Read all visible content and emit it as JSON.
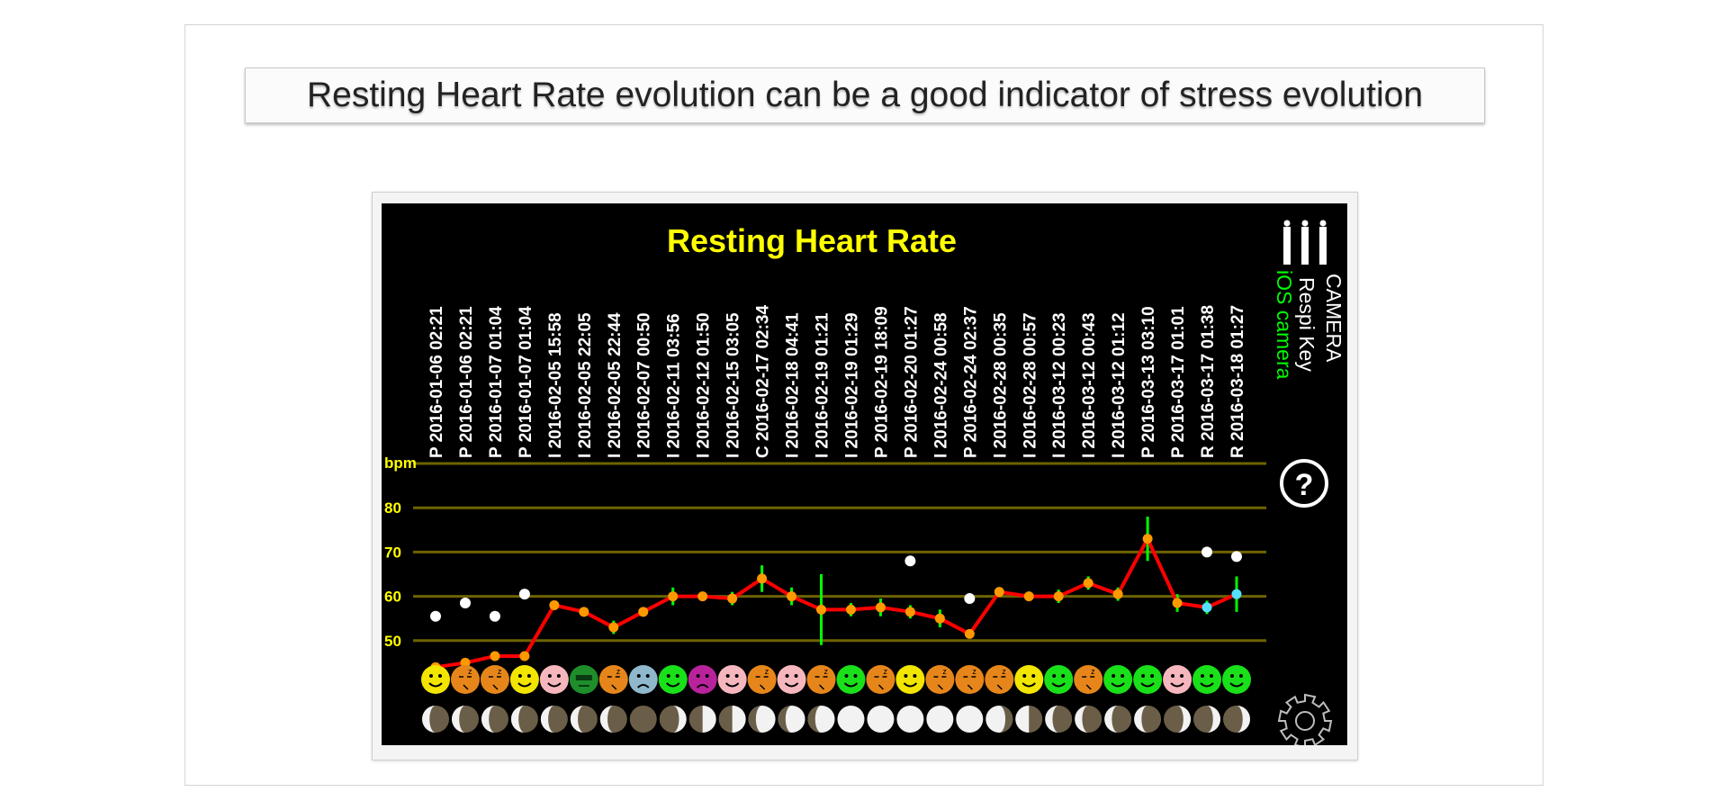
{
  "slide": {
    "headline": "Resting Heart Rate evolution can be a good indicator of stress evolution"
  },
  "app": {
    "legend": {
      "camera": "CAMERA",
      "respi_key": "Respi Key",
      "ios_camera": "iOS camera"
    },
    "icons": [
      "bars-logo-icon",
      "help-icon",
      "settings-gear-icon"
    ]
  },
  "chart_data": {
    "type": "line",
    "title": "Resting Heart Rate",
    "ylabel": "bpm",
    "yticks": [
      80,
      70,
      60,
      50
    ],
    "ylim": [
      40,
      90
    ],
    "grid": true,
    "colors": {
      "title": "#ffff00",
      "grid": "#6e6300",
      "line": "#ff0000",
      "marker": "#ff9900",
      "errorbar": "#00ff00",
      "reference_point": "#ffffff",
      "cyan_marker": "#55e0ff"
    },
    "x": [
      "P 2016-01-06 02:21",
      "P 2016-01-06 02:21",
      "P 2016-01-07 01:04",
      "P 2016-01-07 01:04",
      "I 2016-02-05 15:58",
      "I 2016-02-05 22:05",
      "I 2016-02-05 22:44",
      "I 2016-02-07 00:50",
      "I 2016-02-11 03:56",
      "I 2016-02-12 01:50",
      "I 2016-02-15 03:05",
      "C 2016-02-17 02:34",
      "I 2016-02-18 04:41",
      "I 2016-02-19 01:21",
      "I 2016-02-19 01:29",
      "P 2016-02-19 18:09",
      "P 2016-02-20 01:27",
      "I 2016-02-24 00:58",
      "P 2016-02-24 02:37",
      "I 2016-02-28 00:35",
      "I 2016-02-28 00:57",
      "I 2016-03-12 00:23",
      "I 2016-03-12 00:43",
      "I 2016-03-12 01:12",
      "P 2016-03-13 03:10",
      "P 2016-03-17 01:01",
      "R 2016-03-17 01:38",
      "R 2016-03-18 01:27"
    ],
    "series": [
      {
        "values": [
          44,
          45,
          46.5,
          46.5,
          58,
          56.5,
          53,
          56.5,
          60,
          60,
          59.5,
          64,
          60,
          57,
          57,
          57.5,
          56.5,
          55,
          51.5,
          61,
          60,
          60,
          63,
          60.5,
          73,
          58.5,
          57.5,
          60.5
        ],
        "error": [
          0,
          0,
          0,
          0,
          0,
          1,
          1.5,
          1,
          2,
          1,
          1.5,
          3,
          2,
          8,
          1.5,
          2,
          1.5,
          2,
          1,
          1,
          1,
          1.5,
          1.5,
          1.5,
          5,
          2,
          1.5,
          4
        ]
      },
      {
        "values": [
          55.5,
          58.5,
          55.5,
          60.5,
          null,
          null,
          null,
          null,
          null,
          null,
          null,
          null,
          null,
          null,
          null,
          null,
          68,
          null,
          59.5,
          null,
          null,
          null,
          null,
          null,
          null,
          null,
          70,
          69
        ]
      }
    ],
    "mood_icons": [
      "happy-yellow",
      "sleepy-orange",
      "sleepy-orange",
      "happy-yellow",
      "content-pink",
      "sick-green",
      "sleepy-orange",
      "sad-blue",
      "smile-green",
      "angry-purple",
      "content-pink",
      "sleepy-orange",
      "content-pink",
      "sleepy-orange",
      "smile-green",
      "sleepy-orange",
      "happy-yellow",
      "sleepy-orange",
      "sleepy-orange",
      "sleepy-orange",
      "happy-yellow",
      "smile-green",
      "sleepy-orange",
      "smile-green",
      "smile-green",
      "content-pink",
      "smile-green",
      "smile-green"
    ],
    "moon_phases": [
      "waning-crescent",
      "waning-crescent",
      "waning-crescent",
      "waning-crescent",
      "waning-crescent",
      "waning-crescent",
      "waning-crescent",
      "new-moon",
      "waxing-crescent",
      "first-quarter",
      "first-quarter",
      "waxing-gibbous",
      "waxing-gibbous",
      "waxing-gibbous",
      "full-moon",
      "full-moon",
      "full-moon",
      "full-moon",
      "full-moon",
      "waning-gibbous",
      "last-quarter",
      "waning-crescent",
      "waning-crescent",
      "waning-crescent",
      "waning-crescent",
      "waxing-crescent",
      "waxing-crescent",
      "waxing-crescent"
    ]
  }
}
